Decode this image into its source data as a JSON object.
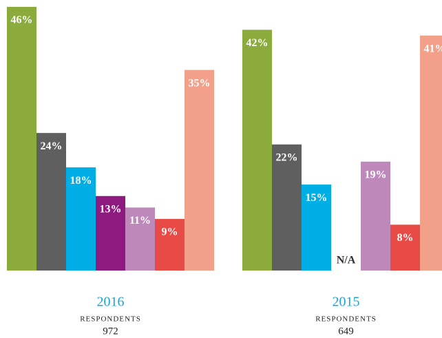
{
  "chart_data": [
    {
      "type": "bar",
      "title": "2016",
      "subtitle": "RESPONDENTS",
      "respondents": "972",
      "categories": [
        null,
        null,
        null,
        null,
        null,
        null,
        null
      ],
      "values": [
        46,
        24,
        18,
        13,
        11,
        9,
        35
      ],
      "value_labels": [
        "46%",
        "24%",
        "18%",
        "13%",
        "11%",
        "9%",
        "35%"
      ],
      "colors": [
        "#8bab3c",
        "#5f5f5f",
        "#00aee6",
        "#8e1a7f",
        "#bf88bb",
        "#e84b45",
        "#f2a08a"
      ],
      "ylim": [
        0,
        46
      ]
    },
    {
      "type": "bar",
      "title": "2015",
      "subtitle": "RESPONDENTS",
      "respondents": "649",
      "categories": [
        null,
        null,
        null,
        null,
        null,
        null,
        null
      ],
      "values": [
        42,
        22,
        15,
        null,
        19,
        8,
        41
      ],
      "value_labels": [
        "42%",
        "22%",
        "15%",
        "N/A",
        "19%",
        "8%",
        "41%"
      ],
      "colors": [
        "#8bab3c",
        "#5f5f5f",
        "#00aee6",
        null,
        "#bf88bb",
        "#e84b45",
        "#f2a08a"
      ],
      "ylim": [
        0,
        46
      ]
    }
  ]
}
